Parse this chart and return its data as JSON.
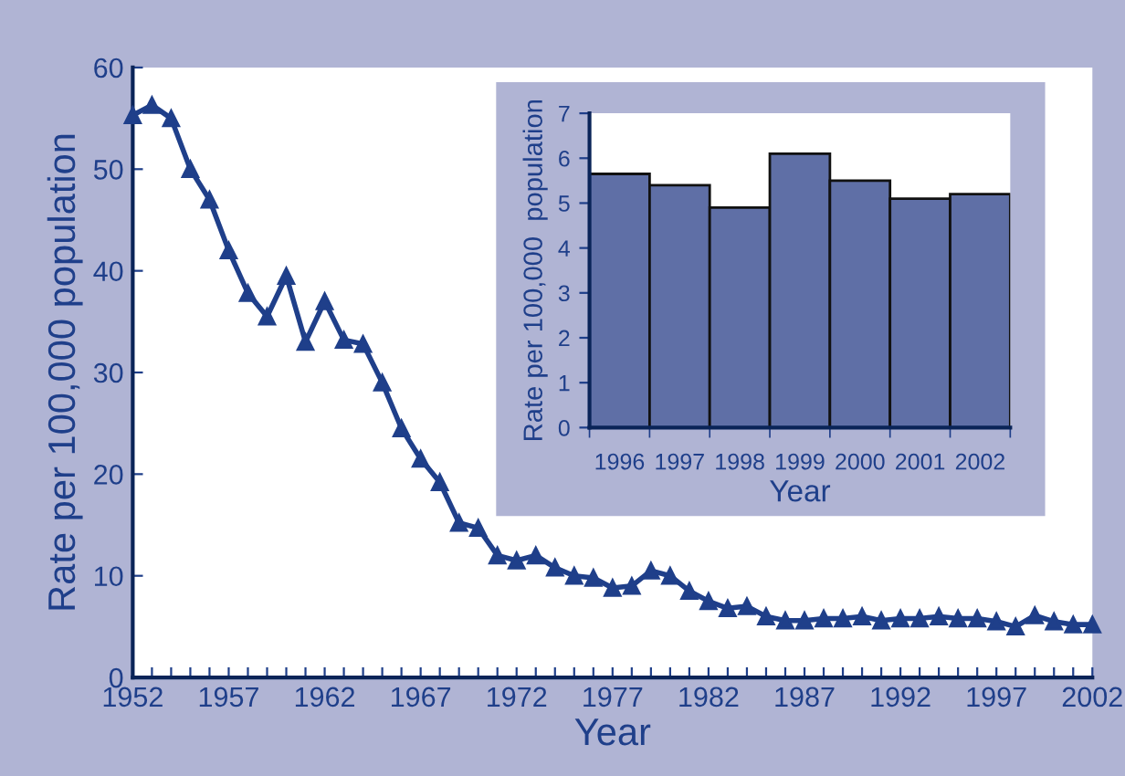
{
  "chart_data": [
    {
      "type": "line",
      "xlabel": "Year",
      "ylabel": "Rate per 100,000 population",
      "marker": "triangle",
      "line_style": "solid",
      "grid": false,
      "x": [
        1952,
        1953,
        1954,
        1955,
        1956,
        1957,
        1958,
        1959,
        1960,
        1961,
        1962,
        1963,
        1964,
        1965,
        1966,
        1967,
        1968,
        1969,
        1970,
        1971,
        1972,
        1973,
        1974,
        1975,
        1976,
        1977,
        1978,
        1979,
        1980,
        1981,
        1982,
        1983,
        1984,
        1985,
        1986,
        1987,
        1988,
        1989,
        1990,
        1991,
        1992,
        1993,
        1994,
        1995,
        1996,
        1997,
        1998,
        1999,
        2000,
        2001,
        2002
      ],
      "series": [
        {
          "color": "#1f3f8a",
          "values": [
            55.3,
            56.3,
            55,
            50,
            47,
            42,
            37.8,
            35.5,
            39.5,
            33,
            37,
            33.2,
            32.8,
            29,
            24.5,
            21.5,
            19.2,
            15.2,
            14.7,
            12,
            11.5,
            12,
            10.8,
            10,
            9.8,
            8.8,
            9,
            10.5,
            10,
            8.5,
            7.5,
            6.8,
            7,
            6,
            5.6,
            5.6,
            5.8,
            5.8,
            6,
            5.6,
            5.8,
            5.8,
            6,
            5.8,
            5.8,
            5.5,
            5,
            6.1,
            5.5,
            5.2,
            5.2
          ]
        }
      ],
      "xlim": [
        1952,
        2002
      ],
      "ylim": [
        0,
        60
      ],
      "yticks": [
        0,
        10,
        20,
        30,
        40,
        50,
        60
      ],
      "xticks": [
        1952,
        {
          "value": 1953,
          "label": null
        },
        {
          "value": 1954,
          "label": null
        },
        {
          "value": 1955,
          "label": null
        },
        {
          "value": 1956,
          "label": null
        },
        1957,
        {
          "value": 1958,
          "label": null
        },
        {
          "value": 1959,
          "label": null
        },
        {
          "value": 1960,
          "label": null
        },
        {
          "value": 1961,
          "label": null
        },
        1962,
        {
          "value": 1963,
          "label": null
        },
        {
          "value": 1964,
          "label": null
        },
        {
          "value": 1965,
          "label": null
        },
        {
          "value": 1966,
          "label": null
        },
        1967,
        {
          "value": 1968,
          "label": null
        },
        {
          "value": 1969,
          "label": null
        },
        {
          "value": 1970,
          "label": null
        },
        {
          "value": 1971,
          "label": null
        },
        1972,
        {
          "value": 1973,
          "label": null
        },
        {
          "value": 1974,
          "label": null
        },
        {
          "value": 1975,
          "label": null
        },
        {
          "value": 1976,
          "label": null
        },
        1977,
        {
          "value": 1978,
          "label": null
        },
        {
          "value": 1979,
          "label": null
        },
        {
          "value": 1980,
          "label": null
        },
        {
          "value": 1981,
          "label": null
        },
        1982,
        {
          "value": 1983,
          "label": null
        },
        {
          "value": 1984,
          "label": null
        },
        {
          "value": 1985,
          "label": null
        },
        {
          "value": 1986,
          "label": null
        },
        1987,
        {
          "value": 1988,
          "label": null
        },
        {
          "value": 1989,
          "label": null
        },
        {
          "value": 1990,
          "label": null
        },
        {
          "value": 1991,
          "label": null
        },
        1992,
        {
          "value": 1993,
          "label": null
        },
        {
          "value": 1994,
          "label": null
        },
        {
          "value": 1995,
          "label": null
        },
        {
          "value": 1996,
          "label": null
        },
        1997,
        {
          "value": 1998,
          "label": null
        },
        {
          "value": 1999,
          "label": null
        },
        {
          "value": 2000,
          "label": null
        },
        {
          "value": 2001,
          "label": null
        },
        2002
      ]
    },
    {
      "type": "bar",
      "xlabel": "Year",
      "ylabel": "Rate per 100,000  population",
      "grid": false,
      "categories": [
        "1996",
        "1997",
        "1998",
        "1999",
        "2000",
        "2001",
        "2002"
      ],
      "series": [
        {
          "color": "#5f6fa6",
          "values": [
            5.65,
            5.4,
            4.9,
            6.1,
            5.5,
            5.1,
            5.2
          ]
        }
      ],
      "ylim": [
        0,
        7
      ],
      "yticks": [
        0,
        1,
        2,
        3,
        4,
        5,
        6,
        7
      ]
    }
  ]
}
